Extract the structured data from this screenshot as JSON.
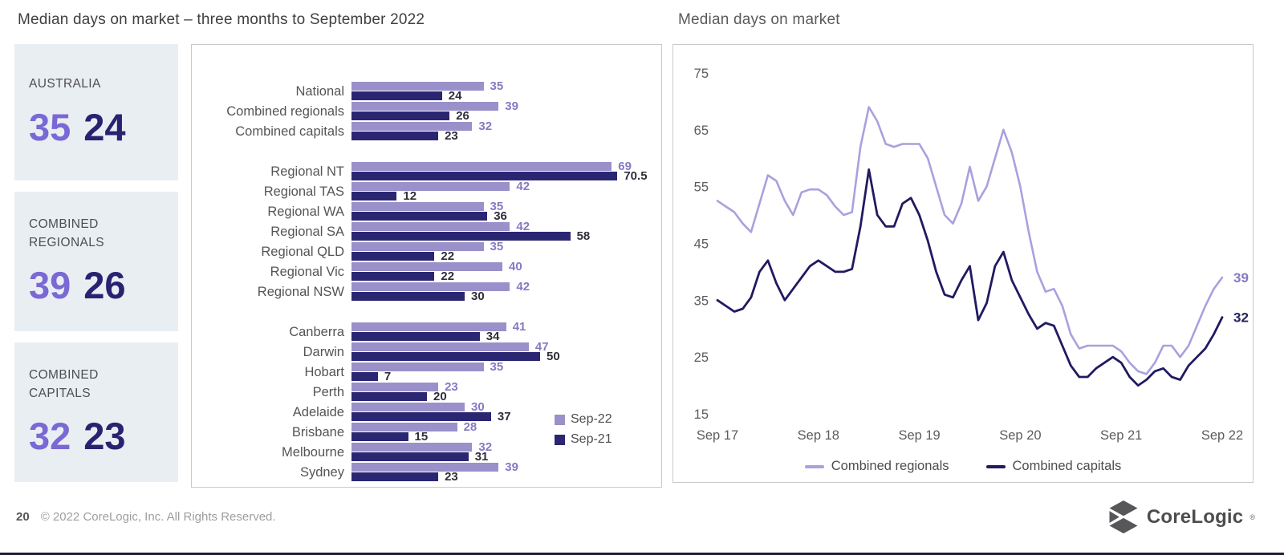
{
  "page": {
    "footer_page_number": "20",
    "footer_copyright": "© 2022 CoreLogic, Inc. All Rights Reserved.",
    "logo_text": "CoreLogic",
    "logo_reg": "®"
  },
  "colors": {
    "sep22_purple": "#9a90ca",
    "sep21_navy": "#2b2672",
    "regionals_line": "#a9a1dd",
    "capitals_line": "#201a61",
    "stat_current_purple": "#7a68d4",
    "stat_prior_navy": "#2a2171",
    "card_background": "#e9eef3"
  },
  "stat_cards": [
    {
      "label": "AUSTRALIA",
      "current": "35",
      "prior": "24"
    },
    {
      "label": "COMBINED REGIONALS",
      "current": "39",
      "prior": "26"
    },
    {
      "label": "COMBINED CAPITALS",
      "current": "32",
      "prior": "23"
    }
  ],
  "chart_data": [
    {
      "type": "bar",
      "orientation": "horizontal",
      "title": "Median days on market – three months to September 2022",
      "legend": [
        "Sep-22",
        "Sep-21"
      ],
      "xlim": [
        0,
        75
      ],
      "grid": false,
      "groups": [
        {
          "rows": [
            {
              "label": "National",
              "sep22": 35,
              "sep21": 24
            },
            {
              "label": "Combined regionals",
              "sep22": 39,
              "sep21": 26
            },
            {
              "label": "Combined capitals",
              "sep22": 32,
              "sep21": 23
            }
          ]
        },
        {
          "rows": [
            {
              "label": "Regional NT",
              "sep22": 69,
              "sep21": 70.5
            },
            {
              "label": "Regional TAS",
              "sep22": 42,
              "sep21": 12
            },
            {
              "label": "Regional WA",
              "sep22": 35,
              "sep21": 36
            },
            {
              "label": "Regional SA",
              "sep22": 42,
              "sep21": 58
            },
            {
              "label": "Regional QLD",
              "sep22": 35,
              "sep21": 22
            },
            {
              "label": "Regional Vic",
              "sep22": 40,
              "sep21": 22
            },
            {
              "label": "Regional NSW",
              "sep22": 42,
              "sep21": 30
            }
          ]
        },
        {
          "rows": [
            {
              "label": "Canberra",
              "sep22": 41,
              "sep21": 34
            },
            {
              "label": "Darwin",
              "sep22": 47,
              "sep21": 50
            },
            {
              "label": "Hobart",
              "sep22": 35,
              "sep21": 7
            },
            {
              "label": "Perth",
              "sep22": 23,
              "sep21": 20
            },
            {
              "label": "Adelaide",
              "sep22": 30,
              "sep21": 37
            },
            {
              "label": "Brisbane",
              "sep22": 28,
              "sep21": 15
            },
            {
              "label": "Melbourne",
              "sep22": 32,
              "sep21": 31
            },
            {
              "label": "Sydney",
              "sep22": 39,
              "sep21": 23
            }
          ]
        }
      ]
    },
    {
      "type": "line",
      "title": "Median days on market",
      "x_unit": "monthly",
      "x_range": [
        "Sep 2017",
        "Sep 2022"
      ],
      "x_ticks": [
        "Sep 17",
        "Sep 18",
        "Sep 19",
        "Sep 20",
        "Sep 21",
        "Sep 22"
      ],
      "y_ticks": [
        75,
        65,
        55,
        45,
        35,
        25,
        15
      ],
      "ylim": [
        15,
        75
      ],
      "grid": false,
      "legend_position": "bottom",
      "series": [
        {
          "name": "Combined regionals",
          "end_label": 39,
          "values": [
            52.5,
            51.5,
            50.5,
            48.5,
            47,
            52,
            57,
            56,
            52.5,
            50,
            54,
            54.5,
            54.5,
            53.5,
            51.5,
            50,
            50.5,
            62,
            69,
            66.5,
            62.5,
            62,
            62.5,
            62.5,
            62.5,
            60,
            55,
            50,
            48.5,
            52,
            58.5,
            52.5,
            55,
            60,
            65,
            61,
            55,
            47,
            40,
            36.5,
            37,
            34,
            29,
            26.5,
            27,
            27,
            27,
            27,
            26,
            24,
            22.5,
            22,
            24,
            27,
            27,
            25,
            27,
            30.5,
            34,
            37,
            39
          ]
        },
        {
          "name": "Combined capitals",
          "end_label": 32,
          "values": [
            35,
            34,
            33,
            33.5,
            35.5,
            40,
            42,
            38,
            35,
            37,
            39,
            41,
            42,
            41,
            40,
            40,
            40.5,
            48,
            58,
            50,
            48,
            48,
            52,
            53,
            50,
            45.5,
            40,
            36,
            35.5,
            38.5,
            41,
            31.5,
            34.5,
            41,
            43.5,
            38.5,
            35.5,
            32.5,
            30,
            31,
            30.5,
            27,
            23.5,
            21.5,
            21.5,
            23,
            24,
            25,
            24,
            21.5,
            20,
            21,
            22.5,
            23,
            21.5,
            21,
            23.5,
            25,
            26.5,
            29,
            32
          ]
        }
      ]
    }
  ]
}
